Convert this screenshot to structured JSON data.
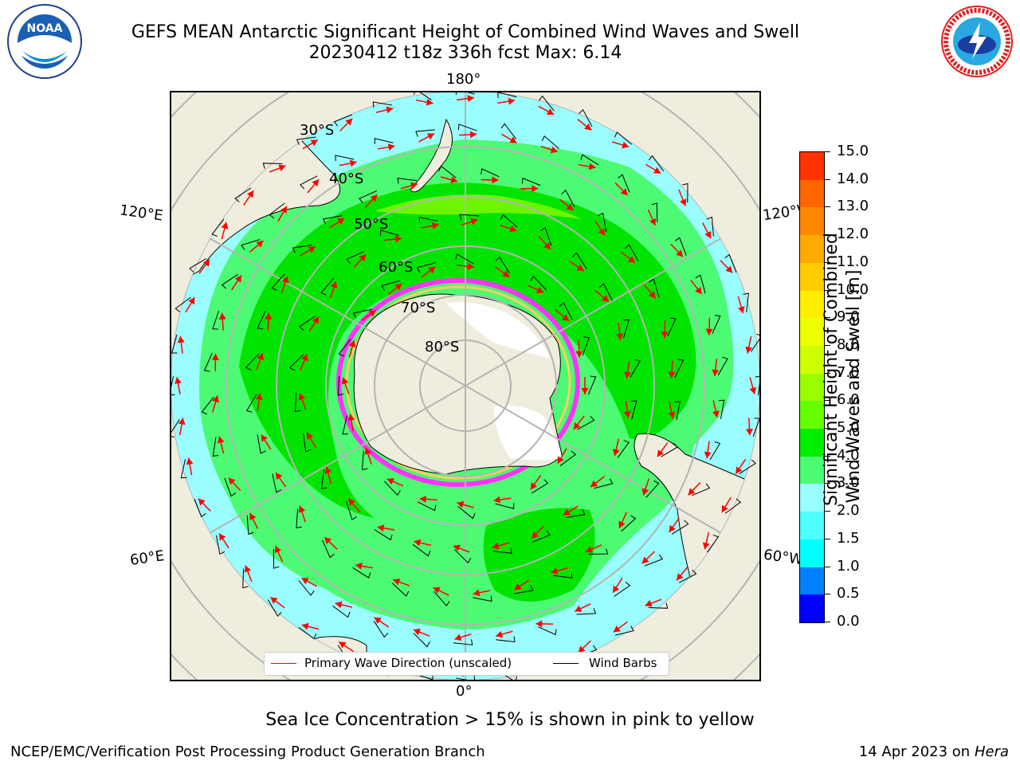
{
  "title": {
    "line1": "GEFS MEAN Antarctic Significant Height of Combined Wind Waves and Swell",
    "line2": "20230412 t18z 336h fcst   Max: 6.14"
  },
  "logos": {
    "noaa_text": "NOAA",
    "nws_text": "NATIONAL WEATHER SERVICE"
  },
  "map": {
    "lon_labels": {
      "top": "180°",
      "bottom": "0°",
      "left_upper": "120°E",
      "left_lower": "60°E",
      "right_upper": "120°W",
      "right_lower": "60°W"
    },
    "lat_labels": [
      "30°S",
      "40°S",
      "50°S",
      "60°S",
      "70°S",
      "80°S"
    ],
    "colors": {
      "land": "#efedde",
      "ocean_low": "#9afeff",
      "ocean_mid": "#4dfa73",
      "ocean_high": "#00e400",
      "ocean_peak": "#6cf500",
      "ice_edge": "#ff33ff",
      "arrow": "#ff0000",
      "barb": "#000000",
      "grid": "#b4b4b4"
    }
  },
  "legend": {
    "primary_wave": "Primary Wave Direction (unscaled)",
    "wind_barbs": "Wind Barbs"
  },
  "colorbar": {
    "label_line1": "Significant Height of Combined",
    "label_line2": "Wind Waves and Swell [m]",
    "ticks": [
      "15.0",
      "14.0",
      "13.0",
      "12.0",
      "11.0",
      "10.0",
      "9.0",
      "8.0",
      "7.0",
      "6.0",
      "5.0",
      "4.0",
      "3.0",
      "2.0",
      "1.5",
      "1.0",
      "0.5",
      "0.0"
    ],
    "colors": [
      "#ff0000",
      "#ff3300",
      "#ff6600",
      "#ff8800",
      "#ffaa00",
      "#ffcc00",
      "#ffee00",
      "#eeff00",
      "#ccff00",
      "#99ff00",
      "#66ff00",
      "#00ee00",
      "#4dfa73",
      "#9afeff",
      "#4dffff",
      "#00ffff",
      "#0080ff",
      "#0000ff"
    ]
  },
  "note": "Sea Ice Concentration > 15% is shown in pink to yellow",
  "footer": {
    "left": "NCEP/EMC/Verification Post Processing Product Generation Branch",
    "date": "14 Apr 2023 on ",
    "machine": "Hera"
  }
}
